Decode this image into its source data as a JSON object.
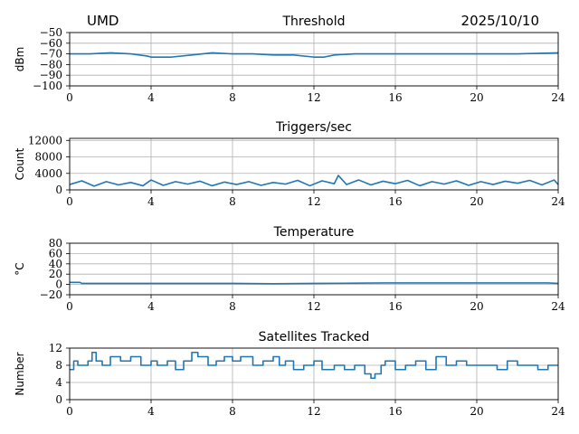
{
  "header": {
    "site": "UMD",
    "date": "2025/10/10"
  },
  "series_color": "#1f77b4",
  "chart_data": [
    {
      "type": "line",
      "title": "Threshold",
      "xlabel": "",
      "ylabel": "dBm",
      "xlim": [
        0,
        24
      ],
      "ylim": [
        -100,
        -50
      ],
      "xticks": [
        0,
        4,
        8,
        12,
        16,
        20,
        24
      ],
      "yticks": [
        -100,
        -90,
        -80,
        -70,
        -60,
        -50
      ],
      "yticklabels": [
        "−100",
        "−90",
        "−80",
        "−70",
        "−60",
        "−50"
      ],
      "grid": true,
      "series": [
        {
          "x": [
            0,
            1,
            2,
            3,
            3.8,
            4,
            5,
            6,
            7,
            8,
            9,
            10,
            11,
            12,
            12.5,
            13,
            14,
            16,
            18,
            20,
            22,
            24
          ],
          "y": [
            -70,
            -70,
            -69,
            -70,
            -72,
            -73,
            -73,
            -71,
            -69,
            -70,
            -70,
            -71,
            -71,
            -73,
            -73,
            -71,
            -70,
            -70,
            -70,
            -70,
            -70,
            -69
          ]
        }
      ]
    },
    {
      "type": "line",
      "title": "Triggers/sec",
      "xlabel": "",
      "ylabel": "Count",
      "xlim": [
        0,
        24
      ],
      "ylim": [
        0,
        12500
      ],
      "xticks": [
        0,
        4,
        8,
        12,
        16,
        20,
        24
      ],
      "yticks": [
        0,
        4000,
        8000,
        12000
      ],
      "yticklabels": [
        "0",
        "4000",
        "8000",
        "12000"
      ],
      "grid": true,
      "series": [
        {
          "x": [
            0,
            0.6,
            1.2,
            1.8,
            2.4,
            3,
            3.6,
            4,
            4.6,
            5.2,
            5.8,
            6.4,
            7,
            7.6,
            8.2,
            8.8,
            9.4,
            10,
            10.6,
            11.2,
            11.8,
            12.4,
            13,
            13.2,
            13.6,
            14.2,
            14.8,
            15.4,
            16,
            16.6,
            17.2,
            17.8,
            18.4,
            19,
            19.6,
            20.2,
            20.8,
            21.4,
            22,
            22.6,
            23.2,
            23.8,
            24
          ],
          "y": [
            1300,
            2200,
            900,
            2000,
            1200,
            1800,
            1000,
            2400,
            1100,
            2000,
            1400,
            2100,
            1000,
            1900,
            1300,
            2000,
            1100,
            1800,
            1400,
            2300,
            1000,
            2200,
            1500,
            3500,
            1300,
            2400,
            1200,
            2100,
            1500,
            2300,
            1000,
            2000,
            1400,
            2200,
            1100,
            2000,
            1300,
            2100,
            1600,
            2300,
            1200,
            2400,
            1300
          ]
        }
      ]
    },
    {
      "type": "line",
      "title": "Temperature",
      "xlabel": "",
      "ylabel": "°C",
      "xlim": [
        0,
        24
      ],
      "ylim": [
        -20,
        80
      ],
      "xticks": [
        0,
        4,
        8,
        12,
        16,
        20,
        24
      ],
      "yticks": [
        -20,
        0,
        20,
        40,
        60,
        80
      ],
      "yticklabels": [
        "−20",
        "0",
        "20",
        "40",
        "60",
        "80"
      ],
      "grid": true,
      "series": [
        {
          "x": [
            0,
            0.5,
            0.6,
            4,
            8,
            10,
            12,
            14,
            15.5,
            16,
            20,
            23.5,
            24
          ],
          "y": [
            4,
            4,
            2,
            2,
            2,
            1.5,
            2,
            2.5,
            3,
            3,
            3,
            3,
            2
          ]
        }
      ]
    },
    {
      "type": "line",
      "title": "Satellites Tracked",
      "xlabel": "",
      "ylabel": "Number",
      "xlim": [
        0,
        24
      ],
      "ylim": [
        0,
        12
      ],
      "xticks": [
        0,
        4,
        8,
        12,
        16,
        20,
        24
      ],
      "yticks": [
        0,
        4,
        8,
        12
      ],
      "yticklabels": [
        "0",
        "4",
        "8",
        "12"
      ],
      "grid": true,
      "step": true,
      "series": [
        {
          "x": [
            0,
            0.2,
            0.4,
            0.9,
            1.1,
            1.3,
            1.6,
            2,
            2.5,
            3,
            3.5,
            4,
            4.3,
            4.8,
            5.2,
            5.6,
            6,
            6.3,
            6.8,
            7.2,
            7.6,
            8,
            8.4,
            9,
            9.5,
            10,
            10.3,
            10.6,
            11,
            11.5,
            12,
            12.4,
            13,
            13.5,
            14,
            14.5,
            14.8,
            15,
            15.3,
            15.5,
            16,
            16.5,
            17,
            17.5,
            18,
            18.5,
            19,
            19.5,
            20,
            20.5,
            21,
            21.5,
            22,
            22.5,
            23,
            23.5,
            24
          ],
          "y": [
            7,
            9,
            8,
            9,
            11,
            9,
            8,
            10,
            9,
            10,
            8,
            9,
            8,
            9,
            7,
            9,
            11,
            10,
            8,
            9,
            10,
            9,
            10,
            8,
            9,
            10,
            8,
            9,
            7,
            8,
            9,
            7,
            8,
            7,
            8,
            6,
            5,
            6,
            8,
            9,
            7,
            8,
            9,
            7,
            10,
            8,
            9,
            8,
            8,
            8,
            7,
            9,
            8,
            8,
            7,
            8,
            8
          ]
        }
      ]
    }
  ]
}
